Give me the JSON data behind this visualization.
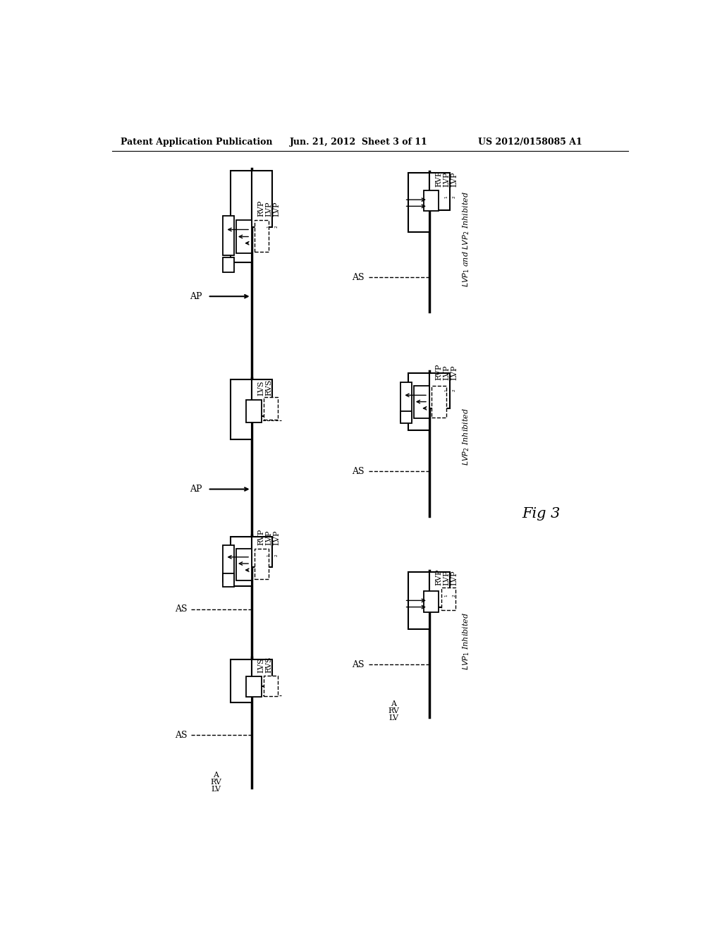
{
  "title_left": "Patent Application Publication",
  "title_mid": "Jun. 21, 2012  Sheet 3 of 11",
  "title_right": "US 2012/0158085 A1",
  "fig_label": "Fig 3",
  "background_color": "#ffffff"
}
